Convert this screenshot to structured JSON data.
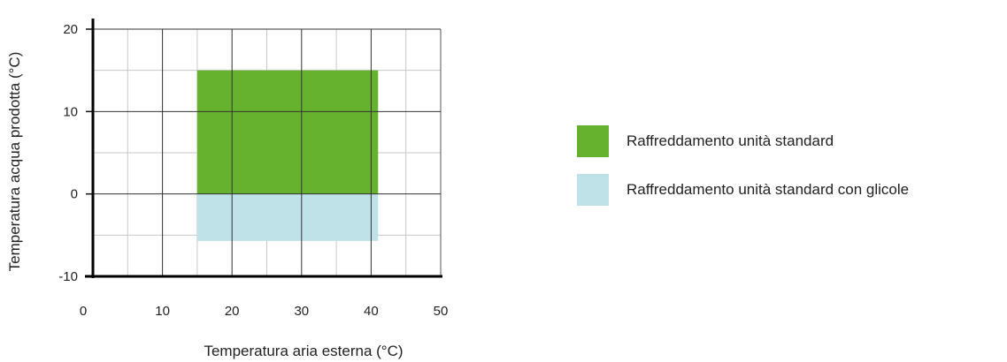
{
  "chart_data": {
    "type": "area",
    "xlabel": "Temperatura aria esterna (°C)",
    "ylabel": "Temperatura acqua prodotta (°C)",
    "xlim": [
      0,
      50
    ],
    "ylim": [
      -10,
      20
    ],
    "xticks": [
      0,
      10,
      20,
      30,
      40,
      50
    ],
    "yticks": [
      -10,
      0,
      10,
      20
    ],
    "grid": true,
    "legend_position": "right",
    "series": [
      {
        "name": "Raffreddamento unità standard",
        "color": "#66b22e",
        "x_range": [
          15,
          41
        ],
        "y_range": [
          0,
          15
        ]
      },
      {
        "name": "Raffreddamento unità standard con glicole",
        "color": "#bfe2e8",
        "x_range": [
          15,
          41
        ],
        "y_range": [
          -5.7,
          0
        ]
      }
    ]
  }
}
